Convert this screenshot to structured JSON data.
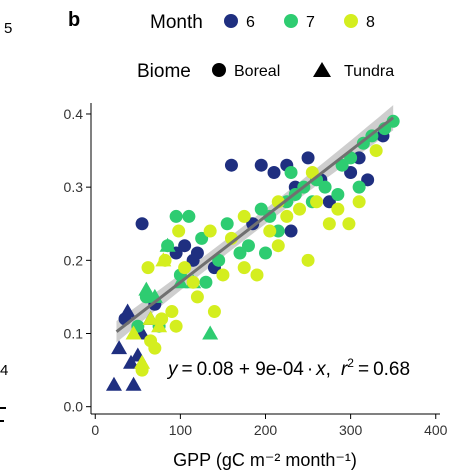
{
  "chart_data": {
    "type": "scatter",
    "panel_label": "b",
    "xlabel": "GPP (gC m⁻² month⁻¹)",
    "ylabel": "",
    "xlim": [
      -5,
      405
    ],
    "ylim": [
      -0.01,
      0.415
    ],
    "xticks": [
      0,
      100,
      200,
      300,
      400
    ],
    "yticks": [
      0.0,
      0.1,
      0.2,
      0.3,
      0.4
    ],
    "legend": {
      "placement": "top",
      "color_title": "Month",
      "color_items": [
        {
          "label": "6",
          "color": "#1f2f80"
        },
        {
          "label": "7",
          "color": "#2ecc71"
        },
        {
          "label": "8",
          "color": "#d4ee1f"
        }
      ],
      "shape_title": "Biome",
      "shape_items": [
        {
          "label": "Boreal",
          "shape": "circle"
        },
        {
          "label": "Tundra",
          "shape": "triangle"
        }
      ]
    },
    "fit": {
      "intercept": 0.08,
      "slope": 0.0009,
      "x_range": [
        25,
        350
      ],
      "ci_color": "#bdbdbd",
      "line_color": "#707070"
    },
    "equation": {
      "lhs": "y",
      "rhs_a": "0.08 + 9e-04",
      "rhs_b": "x",
      "r_label": "r",
      "r_exp": "2",
      "r_value": "0.68"
    },
    "edge_fragments": [
      "5",
      "4"
    ],
    "series": [
      {
        "month": "6",
        "biome": "Boreal",
        "points": [
          [
            35,
            0.12
          ],
          [
            55,
            0.25
          ],
          [
            95,
            0.21
          ],
          [
            105,
            0.22
          ],
          [
            115,
            0.2
          ],
          [
            120,
            0.21
          ],
          [
            140,
            0.19
          ],
          [
            160,
            0.33
          ],
          [
            185,
            0.25
          ],
          [
            195,
            0.33
          ],
          [
            210,
            0.32
          ],
          [
            230,
            0.24
          ],
          [
            250,
            0.34
          ],
          [
            265,
            0.31
          ],
          [
            275,
            0.28
          ],
          [
            300,
            0.32
          ],
          [
            310,
            0.34
          ],
          [
            320,
            0.31
          ],
          [
            338,
            0.37
          ],
          [
            225,
            0.33
          ],
          [
            235,
            0.3
          ],
          [
            70,
            0.14
          ]
        ]
      },
      {
        "month": "6",
        "biome": "Tundra",
        "points": [
          [
            22,
            0.03
          ],
          [
            28,
            0.08
          ],
          [
            38,
            0.13
          ],
          [
            42,
            0.06
          ],
          [
            45,
            0.03
          ],
          [
            50,
            0.07
          ],
          [
            55,
            0.1
          ],
          [
            65,
            0.12
          ]
        ]
      },
      {
        "month": "7",
        "biome": "Boreal",
        "points": [
          [
            50,
            0.11
          ],
          [
            60,
            0.15
          ],
          [
            85,
            0.22
          ],
          [
            95,
            0.26
          ],
          [
            100,
            0.18
          ],
          [
            110,
            0.26
          ],
          [
            125,
            0.23
          ],
          [
            130,
            0.17
          ],
          [
            155,
            0.25
          ],
          [
            170,
            0.21
          ],
          [
            180,
            0.22
          ],
          [
            195,
            0.27
          ],
          [
            205,
            0.26
          ],
          [
            215,
            0.24
          ],
          [
            225,
            0.28
          ],
          [
            235,
            0.29
          ],
          [
            245,
            0.3
          ],
          [
            255,
            0.28
          ],
          [
            260,
            0.31
          ],
          [
            270,
            0.3
          ],
          [
            285,
            0.29
          ],
          [
            290,
            0.33
          ],
          [
            300,
            0.34
          ],
          [
            315,
            0.36
          ],
          [
            325,
            0.37
          ],
          [
            340,
            0.38
          ],
          [
            350,
            0.39
          ],
          [
            230,
            0.32
          ],
          [
            310,
            0.3
          ],
          [
            145,
            0.2
          ],
          [
            200,
            0.21
          ],
          [
            75,
            0.11
          ]
        ]
      },
      {
        "month": "7",
        "biome": "Tundra",
        "points": [
          [
            70,
            0.15
          ],
          [
            85,
            0.22
          ],
          [
            100,
            0.17
          ],
          [
            115,
            0.17
          ],
          [
            135,
            0.1
          ],
          [
            60,
            0.16
          ]
        ]
      },
      {
        "month": "8",
        "biome": "Boreal",
        "points": [
          [
            55,
            0.05
          ],
          [
            65,
            0.09
          ],
          [
            70,
            0.08
          ],
          [
            78,
            0.12
          ],
          [
            82,
            0.2
          ],
          [
            90,
            0.13
          ],
          [
            95,
            0.11
          ],
          [
            105,
            0.19
          ],
          [
            115,
            0.17
          ],
          [
            120,
            0.15
          ],
          [
            135,
            0.24
          ],
          [
            140,
            0.13
          ],
          [
            150,
            0.18
          ],
          [
            160,
            0.23
          ],
          [
            175,
            0.19
          ],
          [
            190,
            0.18
          ],
          [
            205,
            0.24
          ],
          [
            215,
            0.22
          ],
          [
            225,
            0.26
          ],
          [
            240,
            0.27
          ],
          [
            250,
            0.2
          ],
          [
            260,
            0.28
          ],
          [
            275,
            0.25
          ],
          [
            285,
            0.27
          ],
          [
            298,
            0.25
          ],
          [
            310,
            0.28
          ],
          [
            330,
            0.35
          ],
          [
            175,
            0.26
          ],
          [
            255,
            0.32
          ],
          [
            98,
            0.24
          ],
          [
            215,
            0.28
          ],
          [
            62,
            0.19
          ]
        ]
      },
      {
        "month": "8",
        "biome": "Tundra",
        "points": [
          [
            45,
            0.1
          ],
          [
            55,
            0.06
          ],
          [
            65,
            0.12
          ],
          [
            75,
            0.11
          ],
          [
            80,
            0.2
          ]
        ]
      }
    ]
  }
}
